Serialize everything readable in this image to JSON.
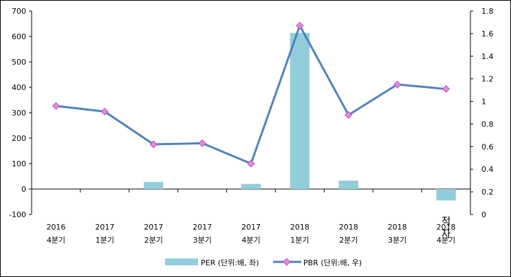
{
  "chart_data": {
    "type": "bar+line",
    "categories": [
      [
        "2016",
        "4분기"
      ],
      [
        "2017",
        "1분기"
      ],
      [
        "2017",
        "2분기"
      ],
      [
        "2017",
        "3분기"
      ],
      [
        "2017",
        "4분기"
      ],
      [
        "2018",
        "1분기"
      ],
      [
        "2018",
        "2분기"
      ],
      [
        "2018",
        "3분기"
      ],
      [
        "2018",
        "4분기"
      ]
    ],
    "series": [
      {
        "name": "PER (단위:배, 좌)",
        "kind": "bar",
        "axis": "left",
        "color": "#92cddc",
        "values": [
          null,
          null,
          28,
          null,
          20,
          614,
          33,
          null,
          -45
        ]
      },
      {
        "name": "PBR (단위:배, 우)",
        "kind": "line",
        "axis": "right",
        "color": "#4f81bd",
        "marker_color": "#ee82ee",
        "values": [
          0.96,
          0.91,
          0.62,
          0.63,
          0.45,
          1.67,
          0.88,
          1.15,
          1.11
        ]
      }
    ],
    "left_axis": {
      "min": -100,
      "max": 700,
      "ticks": [
        -100,
        0,
        100,
        200,
        300,
        400,
        500,
        600,
        700
      ]
    },
    "right_axis": {
      "min": 0,
      "max": 1.8,
      "ticks": [
        "0",
        "0.2",
        "0.4",
        "0.6",
        "0.8",
        "1",
        "1.2",
        "1.4",
        "1.6",
        "1.8"
      ]
    },
    "annotation": {
      "category_index": 8,
      "text": "적자"
    },
    "legend_position": "bottom"
  }
}
